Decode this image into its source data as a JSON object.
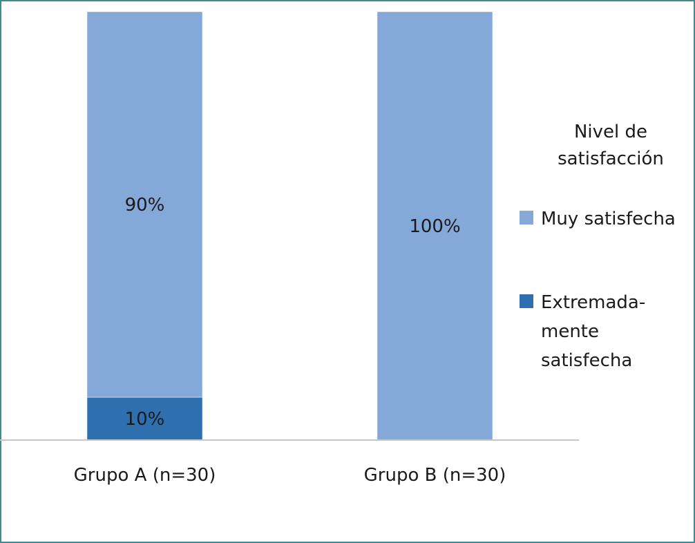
{
  "chart_data": {
    "type": "bar",
    "stacked": true,
    "percent_stacked": true,
    "categories": [
      "Grupo A (n=30)",
      "Grupo B (n=30)"
    ],
    "series": [
      {
        "name": "Extremada-\nmente\nsatisfecha",
        "values": [
          10,
          0
        ],
        "color": "#2e6fb0",
        "labels": [
          "10%",
          ""
        ]
      },
      {
        "name": "Muy satisfecha",
        "values": [
          90,
          100
        ],
        "color": "#84a8d8",
        "labels": [
          "90%",
          "100%"
        ]
      }
    ],
    "ylim": [
      0,
      100
    ],
    "grid": false,
    "legend": {
      "title": "Nivel de\nsatisfacción",
      "position": "right",
      "order": [
        1,
        0
      ]
    }
  }
}
